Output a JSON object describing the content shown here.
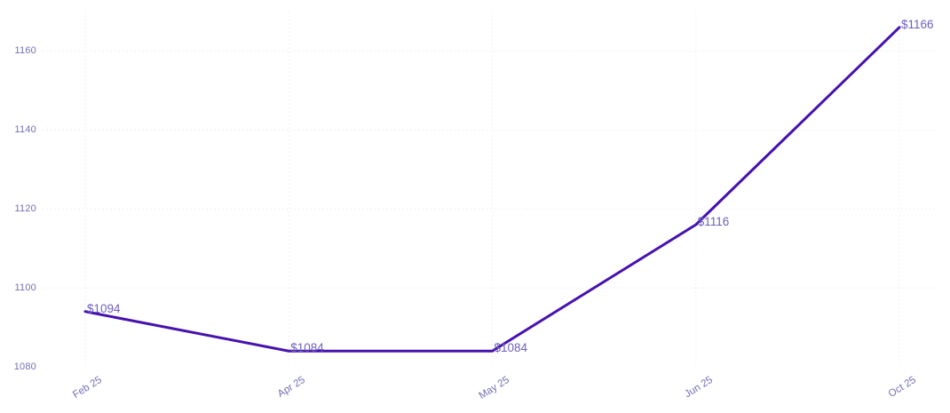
{
  "chart_data": {
    "type": "line",
    "title": "",
    "xlabel": "",
    "ylabel": "",
    "categories": [
      "Feb 25",
      "Apr 25",
      "May 25",
      "Jun 25",
      "Oct 25"
    ],
    "values": [
      1094,
      1084,
      1084,
      1116,
      1166
    ],
    "point_labels": [
      "$1094",
      "$1084",
      "$1084",
      "$1116",
      "$1166"
    ],
    "y_ticks": [
      1080,
      1100,
      1120,
      1140,
      1160
    ],
    "y_ticks_with_gridline": [
      1100,
      1120,
      1140,
      1160
    ],
    "ylim": [
      1080,
      1170
    ],
    "grid": true,
    "grid_style": "dotted",
    "legend": false,
    "legend_position": "none",
    "line_color": "#4712ad",
    "point_label_color": "#6c60be",
    "tick_label_color": "#736eb4",
    "grid_color": "#ececf6",
    "background": "#ffffff"
  }
}
